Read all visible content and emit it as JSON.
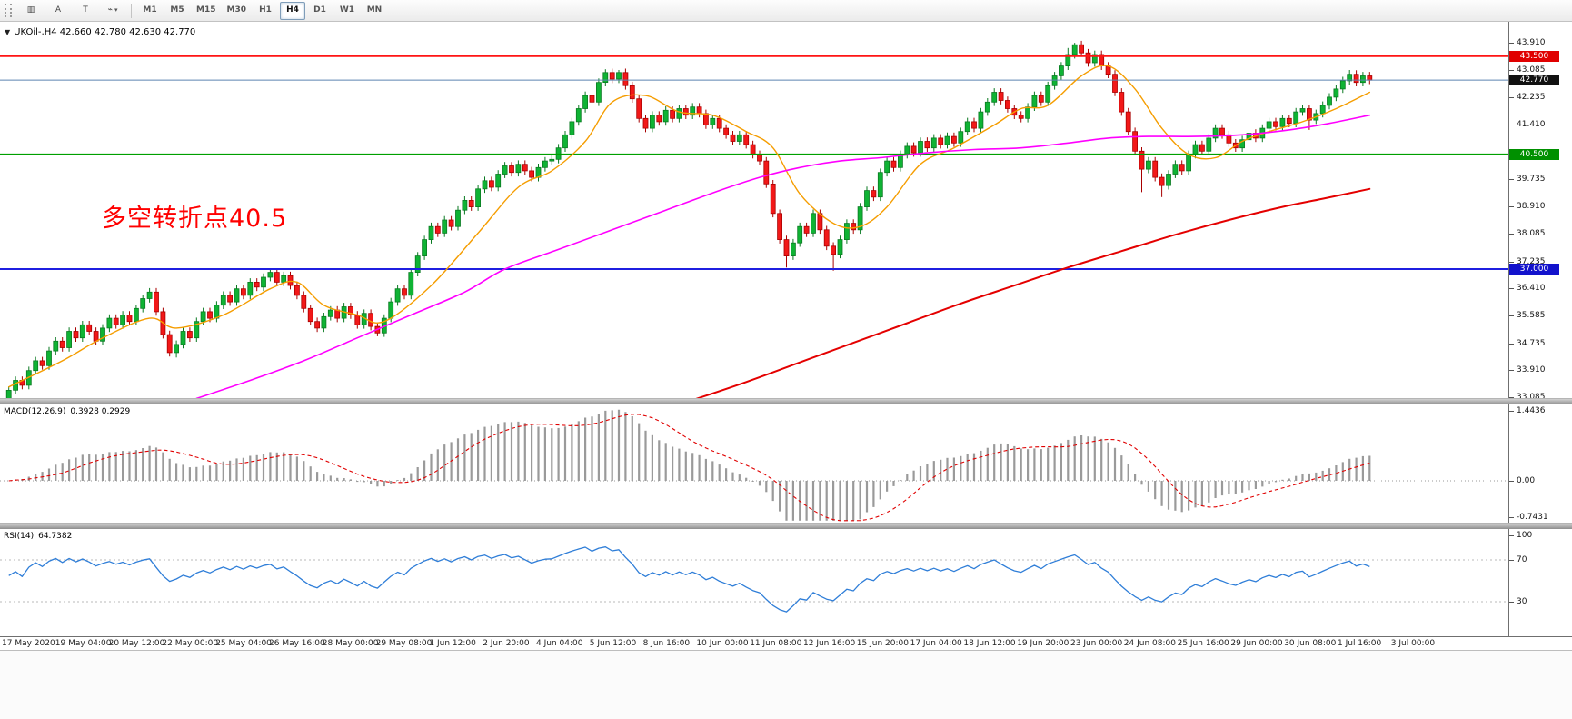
{
  "toolbar": {
    "icons": [
      {
        "name": "chart-window-icon",
        "glyph": "▥"
      },
      {
        "name": "cursor-tool-icon",
        "glyph": "A"
      },
      {
        "name": "text-tool-icon",
        "glyph": "T"
      },
      {
        "name": "quick-tools-icon",
        "glyph": "⌁",
        "caret": "▾"
      }
    ],
    "timeframes": [
      {
        "label": "M1",
        "active": false
      },
      {
        "label": "M5",
        "active": false
      },
      {
        "label": "M15",
        "active": false
      },
      {
        "label": "M30",
        "active": false
      },
      {
        "label": "H1",
        "active": false
      },
      {
        "label": "H4",
        "active": true
      },
      {
        "label": "D1",
        "active": false
      },
      {
        "label": "W1",
        "active": false
      },
      {
        "label": "MN",
        "active": false
      }
    ]
  },
  "chart": {
    "title_collapse_glyph": "▼",
    "symbol_period": "UKOil-,H4",
    "ohlc_text": "42.660 42.780 42.630 42.770",
    "annotation": {
      "text": "多空转折点40.5",
      "color": "#ff0000"
    },
    "colors": {
      "bg": "#ffffff",
      "up": "#0fb334",
      "up_border": "#0a7a22",
      "down": "#f21818",
      "down_border": "#a80000"
    },
    "price_axis": {
      "top_price": 44.55,
      "bottom_price": 33.06,
      "ticks": [
        {
          "label": "43.910",
          "value": 43.91
        },
        {
          "label": "43.085",
          "value": 43.085
        },
        {
          "label": "42.235",
          "value": 42.235
        },
        {
          "label": "41.410",
          "value": 41.41
        },
        {
          "label": "39.735",
          "value": 39.735
        },
        {
          "label": "38.910",
          "value": 38.91
        },
        {
          "label": "38.085",
          "value": 38.085
        },
        {
          "label": "37.235",
          "value": 37.235
        },
        {
          "label": "36.410",
          "value": 36.41
        },
        {
          "label": "35.585",
          "value": 35.585
        },
        {
          "label": "34.735",
          "value": 34.735
        },
        {
          "label": "33.910",
          "value": 33.91
        },
        {
          "label": "33.085",
          "value": 33.085
        }
      ]
    },
    "levels": [
      {
        "value": 43.5,
        "label": "43.500",
        "line_color": "#ff1414",
        "badge_bg": "#e00000",
        "width": 2
      },
      {
        "value": 42.77,
        "label": "42.770",
        "line_color": "#5c84b1",
        "badge_bg": "#111111",
        "width": 1
      },
      {
        "value": 40.5,
        "label": "40.500",
        "line_color": "#00a000",
        "badge_bg": "#009000",
        "width": 2
      },
      {
        "value": 37.0,
        "label": "37.000",
        "line_color": "#1f1fe0",
        "badge_bg": "#1212cc",
        "width": 2
      }
    ]
  },
  "chart_data": {
    "type": "candlestick",
    "symbol": "UKOil-",
    "timeframe": "H4",
    "current_ohlc": {
      "open": 42.66,
      "high": 42.78,
      "low": 42.63,
      "close": 42.77
    },
    "candles": {
      "start_open": 33.05,
      "wick": 0.12,
      "closes": [
        33.3,
        33.6,
        33.45,
        33.9,
        34.2,
        34.05,
        34.5,
        34.8,
        34.6,
        35.1,
        34.9,
        35.3,
        35.1,
        34.8,
        35.2,
        35.5,
        35.3,
        35.6,
        35.4,
        35.8,
        36.1,
        36.3,
        35.7,
        35.0,
        34.45,
        34.7,
        35.1,
        34.9,
        35.4,
        35.7,
        35.5,
        35.9,
        36.2,
        36.0,
        36.4,
        36.2,
        36.6,
        36.45,
        36.75,
        36.9,
        36.6,
        36.8,
        36.5,
        36.2,
        35.8,
        35.4,
        35.2,
        35.55,
        35.75,
        35.5,
        35.85,
        35.6,
        35.3,
        35.65,
        35.25,
        35.05,
        35.5,
        36.0,
        36.4,
        36.2,
        36.9,
        37.4,
        37.9,
        38.3,
        38.1,
        38.5,
        38.3,
        38.8,
        39.1,
        38.9,
        39.45,
        39.7,
        39.5,
        39.9,
        40.15,
        39.95,
        40.2,
        40.0,
        39.8,
        40.1,
        40.3,
        40.35,
        40.7,
        41.1,
        41.5,
        41.9,
        42.3,
        42.1,
        42.7,
        43.0,
        42.8,
        43.0,
        42.6,
        42.2,
        41.6,
        41.3,
        41.7,
        41.5,
        41.85,
        41.6,
        41.9,
        41.7,
        41.95,
        41.75,
        41.4,
        41.6,
        41.3,
        41.1,
        40.9,
        41.1,
        40.8,
        40.5,
        40.3,
        39.6,
        38.7,
        37.9,
        37.4,
        37.8,
        38.3,
        38.1,
        38.7,
        38.2,
        37.7,
        37.45,
        37.9,
        38.4,
        38.2,
        38.9,
        39.4,
        39.2,
        39.95,
        40.3,
        40.1,
        40.5,
        40.75,
        40.55,
        40.9,
        40.7,
        41.0,
        40.8,
        41.05,
        40.85,
        41.2,
        41.5,
        41.3,
        41.8,
        42.1,
        42.4,
        42.15,
        41.9,
        41.7,
        41.6,
        41.95,
        42.3,
        42.1,
        42.6,
        42.9,
        43.2,
        43.55,
        43.85,
        43.6,
        43.3,
        43.55,
        43.2,
        42.95,
        42.4,
        41.8,
        41.2,
        40.6,
        40.05,
        40.3,
        39.8,
        39.55,
        39.9,
        40.2,
        40.0,
        40.5,
        40.8,
        40.6,
        41.0,
        41.3,
        41.1,
        40.85,
        40.7,
        40.95,
        41.15,
        41.0,
        41.3,
        41.5,
        41.35,
        41.6,
        41.45,
        41.8,
        41.9,
        41.55,
        41.75,
        42.0,
        42.25,
        42.5,
        42.75,
        42.95,
        42.7,
        42.9,
        42.77
      ],
      "overrides": {
        "25": {
          "low": 34.3
        },
        "55": {
          "low": 34.95
        },
        "89": {
          "high": 43.1
        },
        "91": {
          "high": 43.08
        },
        "116": {
          "low": 37.05
        },
        "123": {
          "low": 36.95
        },
        "158": {
          "high": 43.75
        },
        "159": {
          "high": 43.91
        },
        "169": {
          "low": 39.35
        },
        "172": {
          "low": 39.2
        },
        "194": {
          "low": 41.25
        },
        "200": {
          "high": 43.08
        }
      }
    },
    "moving_averages": [
      {
        "name": "ma-fast-orange",
        "color": "#f59d00",
        "width": 1.4,
        "points": [
          [
            0,
            33.4
          ],
          [
            8,
            34.2
          ],
          [
            14,
            34.9
          ],
          [
            21,
            35.5
          ],
          [
            25,
            35.2
          ],
          [
            32,
            35.6
          ],
          [
            39,
            36.4
          ],
          [
            43,
            36.6
          ],
          [
            47,
            35.9
          ],
          [
            52,
            35.6
          ],
          [
            56,
            35.4
          ],
          [
            63,
            36.5
          ],
          [
            70,
            38.1
          ],
          [
            76,
            39.5
          ],
          [
            81,
            40.0
          ],
          [
            86,
            40.9
          ],
          [
            90,
            42.1
          ],
          [
            95,
            42.3
          ],
          [
            100,
            41.8
          ],
          [
            105,
            41.7
          ],
          [
            110,
            41.2
          ],
          [
            114,
            40.7
          ],
          [
            118,
            39.3
          ],
          [
            123,
            38.4
          ],
          [
            127,
            38.3
          ],
          [
            131,
            38.9
          ],
          [
            136,
            40.2
          ],
          [
            141,
            40.7
          ],
          [
            147,
            41.4
          ],
          [
            151,
            41.9
          ],
          [
            155,
            42.0
          ],
          [
            160,
            42.9
          ],
          [
            164,
            43.2
          ],
          [
            168,
            42.5
          ],
          [
            172,
            41.3
          ],
          [
            176,
            40.5
          ],
          [
            180,
            40.4
          ],
          [
            184,
            40.9
          ],
          [
            188,
            41.2
          ],
          [
            193,
            41.5
          ],
          [
            198,
            41.9
          ],
          [
            203,
            42.4
          ]
        ]
      },
      {
        "name": "ma-mid-magenta",
        "color": "#ff00ff",
        "width": 1.6,
        "points": [
          [
            28,
            33.05
          ],
          [
            36,
            33.6
          ],
          [
            44,
            34.2
          ],
          [
            52,
            34.9
          ],
          [
            60,
            35.6
          ],
          [
            68,
            36.3
          ],
          [
            74,
            37.0
          ],
          [
            82,
            37.6
          ],
          [
            90,
            38.2
          ],
          [
            98,
            38.8
          ],
          [
            106,
            39.4
          ],
          [
            112,
            39.8
          ],
          [
            118,
            40.1
          ],
          [
            124,
            40.3
          ],
          [
            130,
            40.4
          ],
          [
            137,
            40.55
          ],
          [
            144,
            40.65
          ],
          [
            151,
            40.7
          ],
          [
            158,
            40.85
          ],
          [
            164,
            41.0
          ],
          [
            170,
            41.05
          ],
          [
            177,
            41.05
          ],
          [
            184,
            41.1
          ],
          [
            191,
            41.25
          ],
          [
            197,
            41.45
          ],
          [
            203,
            41.7
          ]
        ]
      },
      {
        "name": "ma-slow-red",
        "color": "#e40000",
        "width": 2,
        "points": [
          [
            102,
            33.0
          ],
          [
            110,
            33.55
          ],
          [
            118,
            34.15
          ],
          [
            126,
            34.75
          ],
          [
            134,
            35.35
          ],
          [
            142,
            35.95
          ],
          [
            150,
            36.5
          ],
          [
            158,
            37.05
          ],
          [
            166,
            37.55
          ],
          [
            174,
            38.05
          ],
          [
            182,
            38.5
          ],
          [
            190,
            38.9
          ],
          [
            196,
            39.15
          ],
          [
            203,
            39.45
          ]
        ]
      }
    ],
    "macd": {
      "label": "MACD(12,26,9)",
      "values_text": "0.3928 0.2929",
      "fast": 12,
      "slow": 26,
      "signal_period": 9,
      "peak": 1.4436,
      "scale_max": 1.55,
      "scale_min": -0.85,
      "axis_ticks": [
        {
          "label": "1.4436",
          "value": 1.4436
        },
        {
          "label": "0.00",
          "value": 0
        },
        {
          "label": "-0.7431",
          "value": -0.7431
        }
      ],
      "hist_color": "#9a9a9a",
      "signal_color": "#e00000"
    },
    "rsi": {
      "label": "RSI(14)",
      "value_text": "64.7382",
      "period": 14,
      "line_color": "#2f7ed8",
      "level_color": "#b8b8b8",
      "top_label": "100",
      "levels": [
        {
          "label": "70",
          "value": 70
        },
        {
          "label": "30",
          "value": 30
        }
      ]
    },
    "x_labels": [
      "17 May 2020",
      "19 May 04:00",
      "20 May 12:00",
      "22 May 00:00",
      "25 May 04:00",
      "26 May 16:00",
      "28 May 00:00",
      "29 May 08:00",
      "1 Jun 12:00",
      "2 Jun 20:00",
      "4 Jun 04:00",
      "5 Jun 12:00",
      "8 Jun 16:00",
      "10 Jun 00:00",
      "11 Jun 08:00",
      "12 Jun 16:00",
      "15 Jun 20:00",
      "17 Jun 04:00",
      "18 Jun 12:00",
      "19 Jun 20:00",
      "23 Jun 00:00",
      "24 Jun 08:00",
      "25 Jun 16:00",
      "29 Jun 00:00",
      "30 Jun 08:00",
      "1 Jul 16:00",
      "3 Jul 00:00"
    ]
  }
}
